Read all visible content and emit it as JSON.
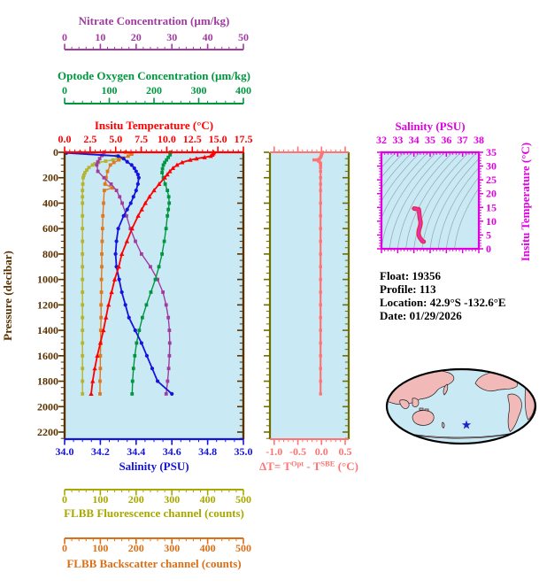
{
  "figure": {
    "info_lines": [
      "Float:  19356",
      "Profile:  113",
      "Location:  42.9°S -132.6°E",
      "Date:  01/29/2026"
    ]
  },
  "colors": {
    "panel_bg": "#C9E9F5",
    "map_ocean": "#C9E9F5",
    "map_land": "#F2B9B9",
    "map_outline": "#000000",
    "star": "#2222CC",
    "isopycnal": "#8A9AA4",
    "ts_line_outer": "#E03038",
    "ts_line_inner": "#EE2BB4"
  },
  "axes": {
    "nitrate": {
      "title": "Nitrate Concentration (µm/kg)",
      "tick_labels": [
        "0",
        "10",
        "20",
        "30",
        "40",
        "50"
      ],
      "range": [
        0,
        50
      ],
      "minor_step": 2,
      "color": "#A03CA0"
    },
    "oxygen": {
      "title": "Optode Oxygen Concentration (µm/kg)",
      "tick_labels": [
        "0",
        "100",
        "200",
        "300",
        "400"
      ],
      "range": [
        0,
        400
      ],
      "minor_step": 20,
      "color": "#009640"
    },
    "temperature": {
      "title": "Insitu Temperature (°C)",
      "tick_labels": [
        "0.0",
        "2.5",
        "5.0",
        "7.5",
        "10.0",
        "12.5",
        "15.0",
        "17.5"
      ],
      "range": [
        0,
        17.5
      ],
      "minor_step": 0.5,
      "color": "#FF0000"
    },
    "pressure": {
      "title": "Pressure (decibar)",
      "tick_labels": [
        "0",
        "200",
        "400",
        "600",
        "800",
        "1000",
        "1200",
        "1400",
        "1600",
        "1800",
        "2000",
        "2200"
      ],
      "range": [
        0,
        2200
      ],
      "minor_step": 50,
      "color": "#5A3200"
    },
    "salinity": {
      "title": "Salinity (PSU)",
      "tick_labels": [
        "34.0",
        "34.2",
        "34.4",
        "34.6",
        "34.8",
        "35.0"
      ],
      "range": [
        34.0,
        35.0
      ],
      "minor_step": 0.05,
      "color": "#1414DC"
    },
    "delta_t": {
      "title_parts": {
        "pre": "ΔT= T",
        "sup1": "Opt",
        "mid": " - T",
        "sup2": "SBE",
        "post": " (°C)"
      },
      "tick_labels": [
        "-1.0",
        "-0.5",
        "0.0",
        "0.5"
      ],
      "range": [
        -1.09,
        0.575
      ],
      "minor_step": 0.1,
      "color": "#FF7373",
      "border_color": "#6E6E00"
    },
    "fluorescence": {
      "title": "FLBB Fluorescence channel (counts)",
      "tick_labels": [
        "0",
        "100",
        "200",
        "300",
        "400",
        "500"
      ],
      "range": [
        0,
        500
      ],
      "minor_step": 20,
      "color": "#A8A800"
    },
    "backscatter": {
      "title": "FLBB Backscatter channel (counts)",
      "tick_labels": [
        "0",
        "100",
        "200",
        "300",
        "400",
        "500"
      ],
      "range": [
        0,
        500
      ],
      "minor_step": 20,
      "color": "#DC6E14"
    },
    "ts_salinity": {
      "title": "Salinity (PSU)",
      "tick_labels": [
        "32",
        "33",
        "34",
        "35",
        "36",
        "37",
        "38"
      ],
      "range": [
        32,
        38
      ],
      "minor_step": 0.2,
      "color": "#E100E1"
    },
    "ts_temperature": {
      "title": "Insitu Temperature (°C)",
      "tick_labels": [
        "0",
        "5",
        "10",
        "15",
        "20",
        "25",
        "30",
        "35"
      ],
      "range": [
        0,
        35
      ],
      "minor_step": 1,
      "color": "#E100E1"
    }
  },
  "chart_data": [
    {
      "type": "line",
      "id": "profile-main",
      "ylabel": "Pressure (decibar)",
      "ylim": [
        0,
        2200
      ],
      "series": [
        {
          "name": "FLBB Fluorescence channel",
          "axis": "fluorescence",
          "color": "#B4B432",
          "marker": "square",
          "pressure": [
            0,
            10,
            20,
            30,
            40,
            50,
            60,
            70,
            80,
            90,
            100,
            120,
            140,
            160,
            180,
            200,
            250,
            300,
            350,
            400,
            500,
            600,
            700,
            800,
            900,
            1000,
            1100,
            1200,
            1300,
            1400,
            1500,
            1600,
            1700,
            1800,
            1900
          ],
          "values": [
            43,
            70,
            110,
            145,
            155,
            150,
            135,
            115,
            95,
            85,
            78,
            68,
            62,
            57,
            54,
            52,
            51,
            50,
            50,
            50,
            50,
            50,
            50,
            50,
            50,
            50,
            50,
            50,
            50,
            50,
            50,
            50,
            50,
            50,
            50
          ]
        },
        {
          "name": "FLBB Backscatter channel",
          "axis": "backscatter",
          "color": "#E07820",
          "marker": "square",
          "pressure": [
            0,
            15,
            30,
            45,
            60,
            80,
            100,
            150,
            200,
            250,
            280,
            300,
            400,
            500,
            600,
            700,
            800,
            900,
            1000,
            1100,
            1200,
            1300,
            1400,
            1500,
            1600,
            1700,
            1800,
            1900
          ],
          "values": [
            170,
            188,
            178,
            165,
            152,
            138,
            128,
            120,
            116,
            113,
            134,
            111,
            109,
            107,
            106,
            105,
            104,
            104,
            103,
            103,
            102,
            102,
            101,
            101,
            100,
            100,
            99,
            99
          ]
        },
        {
          "name": "Nitrate Concentration",
          "axis": "nitrate",
          "color": "#A03CA0",
          "marker": "square",
          "pressure": [
            0,
            25,
            50,
            75,
            100,
            150,
            200,
            250,
            300,
            350,
            400,
            500,
            600,
            700,
            800,
            900,
            1000,
            1100,
            1200,
            1300,
            1400,
            1500,
            1600,
            1700,
            1800,
            1900
          ],
          "values": [
            11.0,
            10.4,
            9.8,
            9.3,
            9.0,
            9.3,
            11.0,
            13.0,
            14.5,
            15.4,
            16.1,
            17.3,
            18.4,
            19.8,
            21.5,
            24.0,
            26.0,
            27.5,
            28.4,
            29.0,
            29.3,
            29.4,
            29.3,
            29.1,
            28.8,
            28.4
          ]
        },
        {
          "name": "Optode Oxygen Concentration",
          "axis": "oxygen",
          "color": "#009640",
          "marker": "square",
          "pressure": [
            0,
            20,
            40,
            60,
            80,
            100,
            130,
            160,
            200,
            250,
            300,
            350,
            400,
            450,
            500,
            600,
            700,
            800,
            900,
            1000,
            1100,
            1200,
            1300,
            1400,
            1500,
            1600,
            1700,
            1800,
            1900
          ],
          "values": [
            237,
            236,
            232,
            228,
            224,
            221,
            219,
            218,
            221,
            225,
            230,
            233,
            234,
            232,
            230,
            227,
            223,
            218,
            211,
            203,
            193,
            183,
            174,
            167,
            161,
            157,
            154,
            152,
            151
          ]
        },
        {
          "name": "Salinity",
          "axis": "salinity",
          "color": "#1414DC",
          "marker": "circle",
          "pressure": [
            5,
            30,
            50,
            75,
            100,
            125,
            150,
            175,
            200,
            250,
            300,
            350,
            400,
            450,
            500,
            600,
            700,
            800,
            900,
            1000,
            1100,
            1200,
            1300,
            1400,
            1500,
            1600,
            1700,
            1800,
            1900
          ],
          "values": [
            34.01,
            34.3,
            34.33,
            34.35,
            34.375,
            34.39,
            34.4,
            34.41,
            34.415,
            34.41,
            34.4,
            34.385,
            34.37,
            34.35,
            34.33,
            34.3,
            34.29,
            34.285,
            34.29,
            34.305,
            34.32,
            34.34,
            34.36,
            34.395,
            34.43,
            34.46,
            34.49,
            34.52,
            34.6
          ]
        },
        {
          "name": "Insitu Temperature",
          "axis": "temperature",
          "color": "#FF0000",
          "marker": "triangle",
          "pressure": [
            0,
            10,
            20,
            30,
            40,
            50,
            60,
            80,
            100,
            125,
            150,
            175,
            200,
            250,
            300,
            350,
            400,
            450,
            500,
            600,
            700,
            800,
            900,
            1000,
            1100,
            1200,
            1300,
            1400,
            1500,
            1600,
            1700,
            1800,
            1900
          ],
          "values": [
            14.6,
            14.55,
            14.45,
            14.3,
            13.7,
            12.9,
            12.3,
            11.5,
            11.0,
            10.6,
            10.3,
            10.05,
            9.8,
            9.25,
            8.75,
            8.3,
            7.9,
            7.55,
            7.2,
            6.6,
            6.1,
            5.6,
            5.3,
            4.9,
            4.6,
            4.3,
            4.05,
            3.8,
            3.5,
            3.2,
            2.95,
            2.75,
            2.6
          ]
        }
      ]
    },
    {
      "type": "line",
      "id": "delta-t-profile",
      "xlabel": "ΔT= TOpt - TSBE (°C)",
      "color": "#FF7373",
      "marker": "square",
      "pressure": [
        0,
        10,
        20,
        30,
        40,
        50,
        60,
        70,
        80,
        90,
        100,
        120,
        150,
        200,
        250,
        300,
        400,
        500,
        600,
        700,
        800,
        900,
        1000,
        1100,
        1200,
        1300,
        1400,
        1500,
        1600,
        1700,
        1800,
        1900
      ],
      "values": [
        0.02,
        0.01,
        0.0,
        -0.01,
        -0.02,
        -0.04,
        -0.16,
        -0.06,
        -0.03,
        -0.02,
        -0.02,
        -0.02,
        -0.02,
        -0.02,
        -0.02,
        -0.02,
        -0.02,
        -0.02,
        -0.02,
        -0.02,
        -0.02,
        -0.02,
        -0.02,
        -0.02,
        -0.02,
        -0.02,
        -0.02,
        -0.02,
        -0.02,
        -0.02,
        -0.02,
        -0.02
      ]
    },
    {
      "type": "scatter",
      "id": "ts-diagram",
      "xlabel": "Salinity (PSU)",
      "ylabel": "Insitu Temperature (°C)",
      "xlim": [
        32,
        38
      ],
      "ylim": [
        0,
        35
      ],
      "salinity": [
        34.01,
        34.3,
        34.33,
        34.36,
        34.39,
        34.41,
        34.41,
        34.4,
        34.37,
        34.33,
        34.3,
        34.29,
        34.285,
        34.29,
        34.305,
        34.32,
        34.34,
        34.36,
        34.395,
        34.43,
        34.46,
        34.49,
        34.52,
        34.6
      ],
      "temperature": [
        14.6,
        14.3,
        12.9,
        11.0,
        10.3,
        9.8,
        9.25,
        8.75,
        7.9,
        7.2,
        6.6,
        6.1,
        5.6,
        5.3,
        4.9,
        4.6,
        4.3,
        4.05,
        3.8,
        3.5,
        3.2,
        2.95,
        2.75,
        2.6
      ]
    }
  ]
}
